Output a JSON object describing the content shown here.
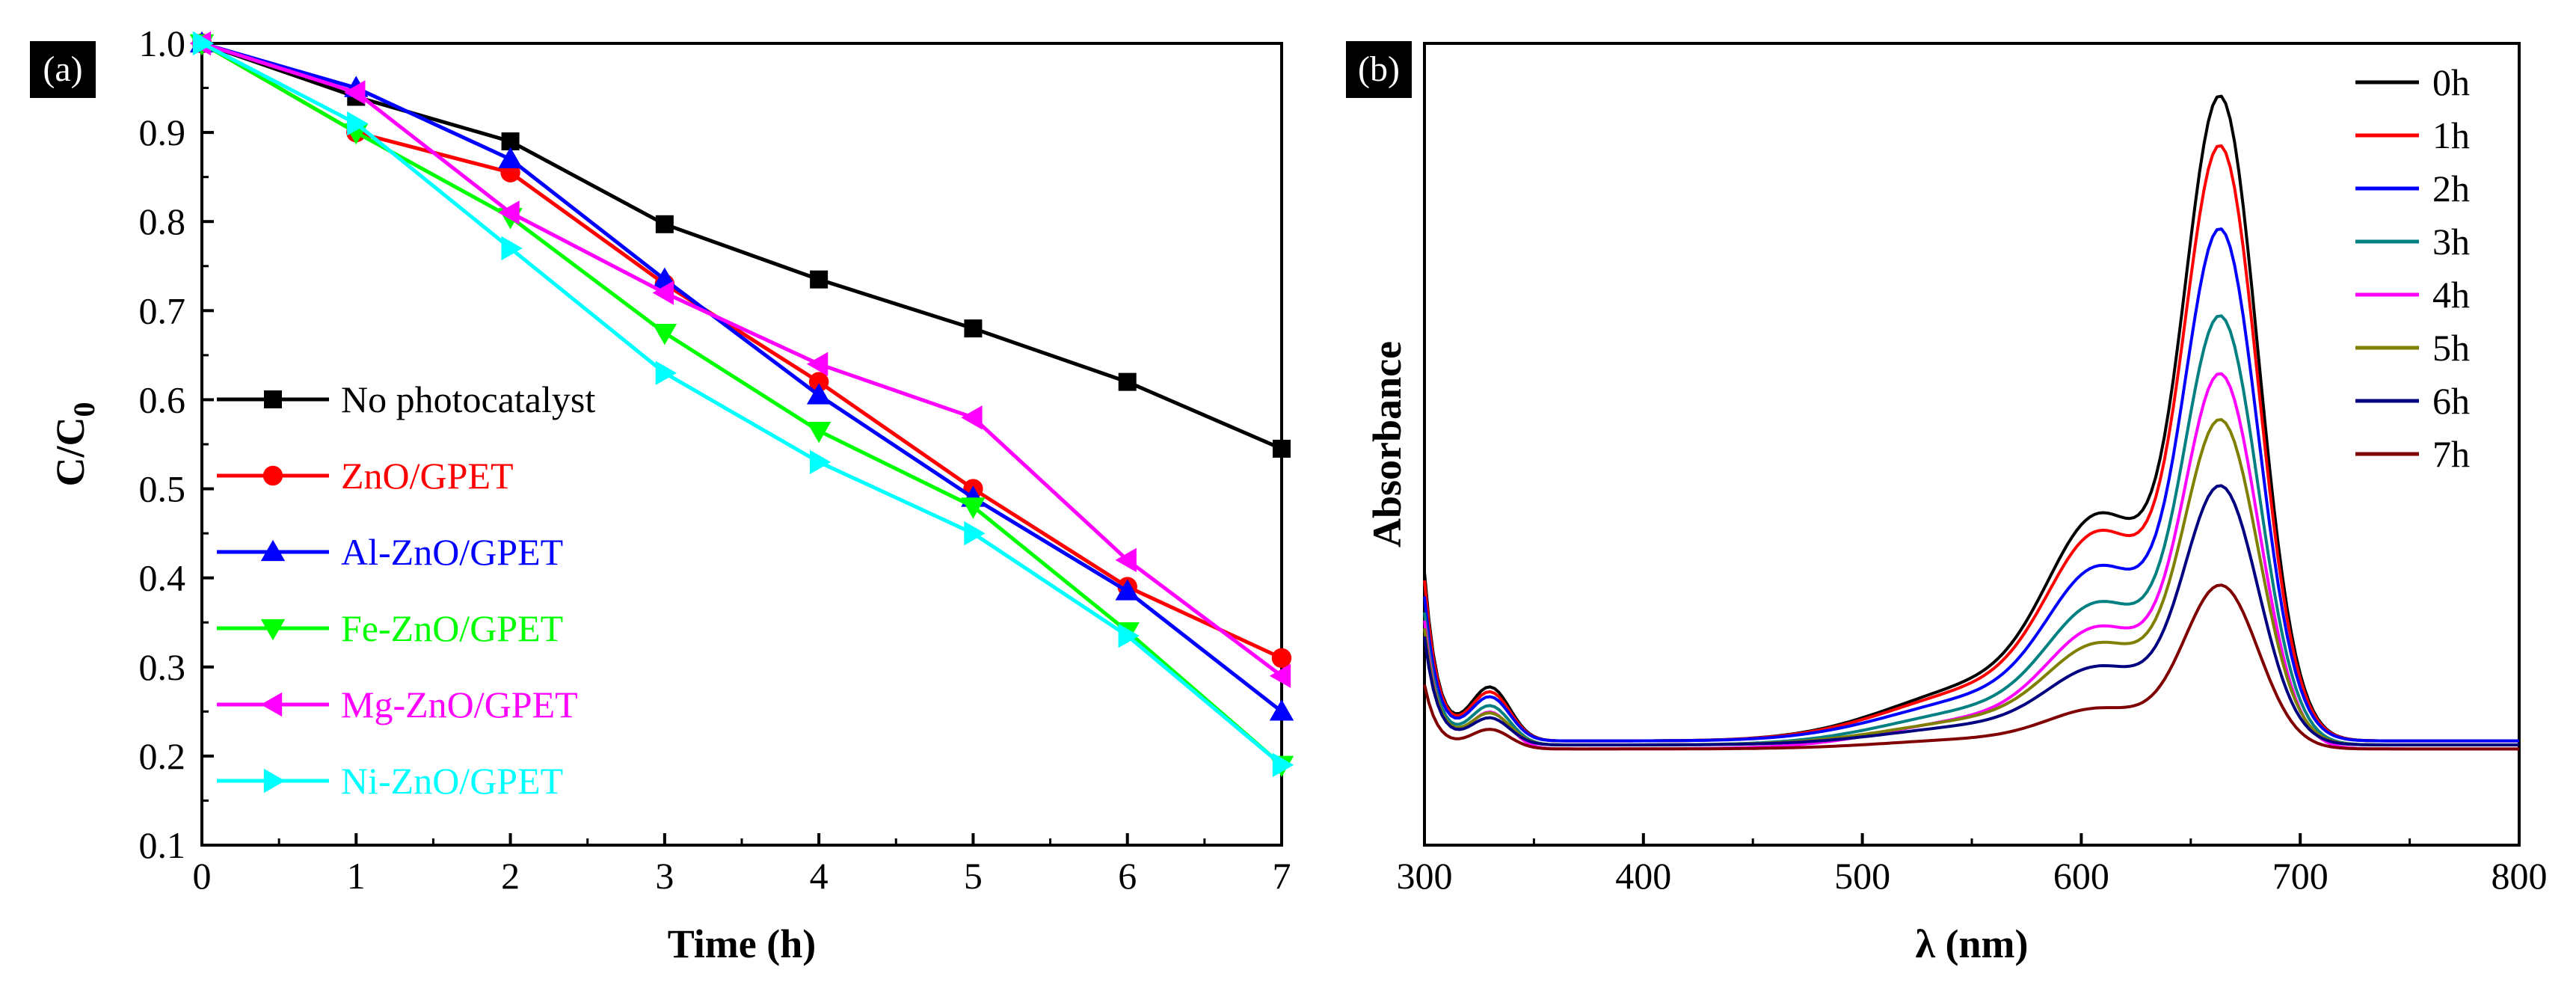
{
  "chart_data": [
    {
      "panel": "(a)",
      "type": "line",
      "xlabel": "Time (h)",
      "ylabel": {
        "main": "C/C",
        "sub": "0"
      },
      "xlim": [
        0,
        7
      ],
      "ylim": [
        0.1,
        1.0
      ],
      "xticks": [
        0,
        1,
        2,
        3,
        4,
        5,
        6,
        7
      ],
      "yticks": [
        0.1,
        0.2,
        0.3,
        0.4,
        0.5,
        0.6,
        0.7,
        0.8,
        0.9,
        1.0
      ],
      "ytick_labels": [
        "0.1",
        "0.2",
        "0.3",
        "0.4",
        "0.5",
        "0.6",
        "0.7",
        "0.8",
        "0.9",
        "1.0"
      ],
      "legend_position": "center-left",
      "x": [
        0,
        1,
        2,
        3,
        4,
        5,
        6,
        7
      ],
      "series": [
        {
          "name": "No photocatalyst",
          "color": "#000000",
          "marker": "square",
          "values": [
            1.0,
            0.94,
            0.89,
            0.797,
            0.735,
            0.68,
            0.62,
            0.545
          ]
        },
        {
          "name": "ZnO/GPET",
          "color": "#ff0000",
          "marker": "circle",
          "values": [
            1.0,
            0.9,
            0.855,
            0.73,
            0.62,
            0.5,
            0.39,
            0.31
          ]
        },
        {
          "name": "Al-ZnO/GPET",
          "color": "#0000ff",
          "marker": "triangle-up",
          "values": [
            1.0,
            0.95,
            0.87,
            0.735,
            0.605,
            0.49,
            0.385,
            0.25
          ]
        },
        {
          "name": "Fe-ZnO/GPET",
          "color": "#00ff00",
          "marker": "triangle-down",
          "values": [
            1.0,
            0.9,
            0.805,
            0.675,
            0.565,
            0.48,
            0.34,
            0.19
          ]
        },
        {
          "name": "Mg-ZnO/GPET",
          "color": "#ff00ff",
          "marker": "triangle-left",
          "values": [
            1.0,
            0.945,
            0.81,
            0.72,
            0.64,
            0.58,
            0.42,
            0.29
          ]
        },
        {
          "name": "Ni-ZnO/GPET",
          "color": "#00ffff",
          "marker": "triangle-right",
          "values": [
            1.0,
            0.91,
            0.77,
            0.63,
            0.53,
            0.45,
            0.335,
            0.19
          ]
        }
      ]
    },
    {
      "panel": "(b)",
      "type": "line",
      "xlabel": "λ (nm)",
      "ylabel": "Absorbance",
      "xlim": [
        300,
        800
      ],
      "ylim": [
        0,
        1.0
      ],
      "xticks": [
        300,
        400,
        500,
        600,
        700,
        800
      ],
      "yticks_shown": false,
      "legend_position": "top-right",
      "peak_wavelength_nm": 664,
      "shoulder_wavelength_nm": 610,
      "series": [
        {
          "name": "0h",
          "color": "#000000",
          "peak": 0.91,
          "shoulder": 0.52,
          "baseline": 0.13,
          "uv_edge": 0.34,
          "uv_bump": 0.24
        },
        {
          "name": "1h",
          "color": "#ff0000",
          "peak": 0.85,
          "shoulder": 0.49,
          "baseline": 0.13,
          "uv_edge": 0.33,
          "uv_bump": 0.23
        },
        {
          "name": "2h",
          "color": "#0000ff",
          "peak": 0.75,
          "shoulder": 0.43,
          "baseline": 0.13,
          "uv_edge": 0.31,
          "uv_bump": 0.22
        },
        {
          "name": "3h",
          "color": "#008080",
          "peak": 0.645,
          "shoulder": 0.37,
          "baseline": 0.125,
          "uv_edge": 0.29,
          "uv_bump": 0.205
        },
        {
          "name": "4h",
          "color": "#ff00ff",
          "peak": 0.575,
          "shoulder": 0.33,
          "baseline": 0.12,
          "uv_edge": 0.28,
          "uv_bump": 0.195
        },
        {
          "name": "5h",
          "color": "#808000",
          "peak": 0.52,
          "shoulder": 0.3,
          "baseline": 0.125,
          "uv_edge": 0.27,
          "uv_bump": 0.19
        },
        {
          "name": "6h",
          "color": "#000080",
          "peak": 0.44,
          "shoulder": 0.26,
          "baseline": 0.125,
          "uv_edge": 0.26,
          "uv_bump": 0.18
        },
        {
          "name": "7h",
          "color": "#800000",
          "peak": 0.32,
          "shoulder": 0.19,
          "baseline": 0.12,
          "uv_edge": 0.2,
          "uv_bump": 0.16
        }
      ]
    }
  ]
}
